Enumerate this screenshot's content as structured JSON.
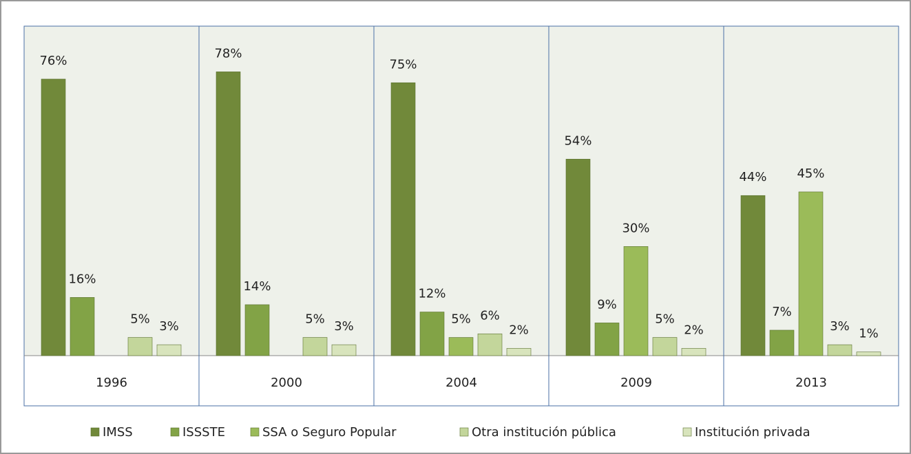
{
  "chart_data": {
    "type": "bar",
    "categories": [
      "1996",
      "2000",
      "2004",
      "2009",
      "2013"
    ],
    "series": [
      {
        "name": "IMSS",
        "color": "#71893a",
        "values": [
          76,
          78,
          75,
          54,
          44
        ],
        "value_labels": [
          "76%",
          "78%",
          "75%",
          "54%",
          "44%"
        ]
      },
      {
        "name": "ISSSTE",
        "color": "#82a346",
        "values": [
          16,
          14,
          12,
          9,
          7
        ],
        "value_labels": [
          "16%",
          "14%",
          "12%",
          "9%",
          "7%"
        ]
      },
      {
        "name": "SSA o Seguro Popular",
        "color": "#9bbb59",
        "values": [
          null,
          null,
          5,
          30,
          45
        ],
        "value_labels": [
          null,
          null,
          "5%",
          "30%",
          "45%"
        ]
      },
      {
        "name": "Otra institución pública",
        "color": "#c3d69b",
        "values": [
          5,
          5,
          6,
          5,
          3
        ],
        "value_labels": [
          "5%",
          "5%",
          "6%",
          "5%",
          "3%"
        ]
      },
      {
        "name": "Institución privada",
        "color": "#d8e4bc",
        "values": [
          3,
          3,
          2,
          2,
          1
        ],
        "value_labels": [
          "3%",
          "3%",
          "2%",
          "2%",
          "1%"
        ]
      }
    ],
    "legend": "bottom"
  }
}
